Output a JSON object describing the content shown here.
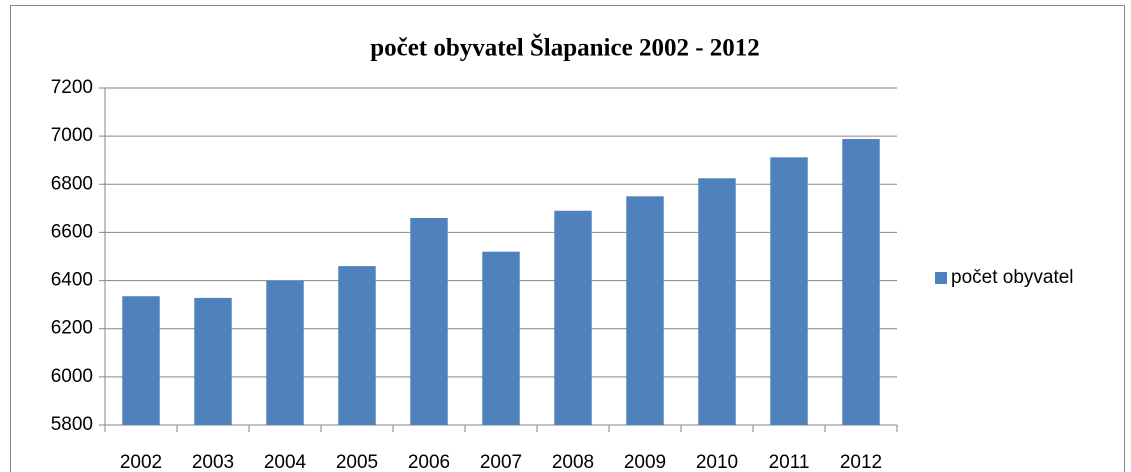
{
  "chart_data": {
    "type": "bar",
    "title": "počet obyvatel Šlapanice 2002 - 2012",
    "categories": [
      "2002",
      "2003",
      "2004",
      "2005",
      "2006",
      "2007",
      "2008",
      "2009",
      "2010",
      "2011",
      "2012"
    ],
    "series": [
      {
        "name": "počet obyvatel",
        "color": "#4f81bd",
        "values": [
          6335,
          6328,
          6400,
          6460,
          6660,
          6520,
          6690,
          6750,
          6825,
          6912,
          6988
        ]
      }
    ],
    "ylim": [
      5800,
      7200
    ],
    "yticks": [
      5800,
      6000,
      6200,
      6400,
      6600,
      6800,
      7000,
      7200
    ],
    "grid": true,
    "legend": "right"
  }
}
